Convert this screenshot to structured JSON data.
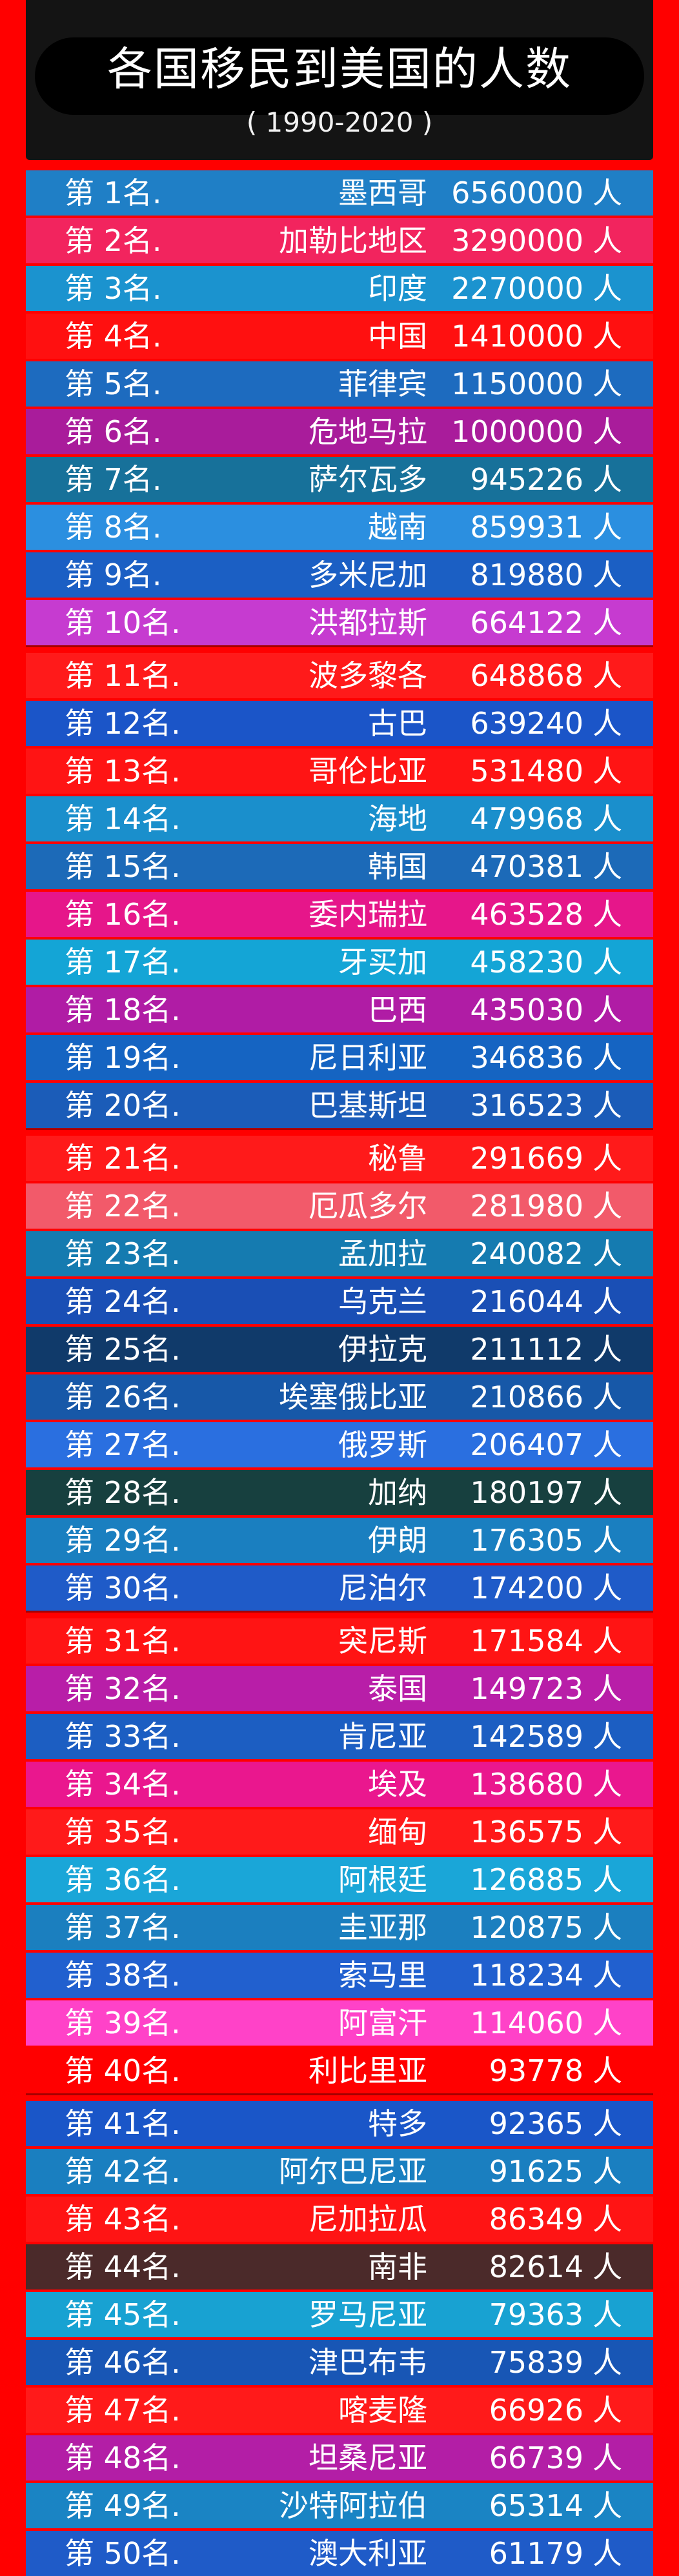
{
  "header": {
    "title": "各国移民到美国的人数",
    "subtitle": "( 1990-2020 )"
  },
  "unit": "人",
  "rows": [
    {
      "rank": "第 1名.",
      "country": "墨西哥",
      "count": "6560000",
      "color": "#1f7fc6"
    },
    {
      "rank": "第 2名.",
      "country": "加勒比地区",
      "count": "3290000",
      "color": "#f2245e"
    },
    {
      "rank": "第 3名.",
      "country": "印度",
      "count": "2270000",
      "color": "#1b93cf"
    },
    {
      "rank": "第 4名.",
      "country": "中国",
      "count": "1410000",
      "color": "#ff1010"
    },
    {
      "rank": "第 5名.",
      "country": "菲律宾",
      "count": "1150000",
      "color": "#1d6bbf"
    },
    {
      "rank": "第 6名.",
      "country": "危地马拉",
      "count": "1000000",
      "color": "#a91c9b"
    },
    {
      "rank": "第 7名.",
      "country": "萨尔瓦多",
      "count": "945226",
      "color": "#17719a"
    },
    {
      "rank": "第 8名.",
      "country": "越南",
      "count": "859931",
      "color": "#2b8fe0"
    },
    {
      "rank": "第 9名.",
      "country": "多米尼加",
      "count": "819880",
      "color": "#1b5fc4"
    },
    {
      "rank": "第 10名.",
      "country": "洪都拉斯",
      "count": "664122",
      "color": "#c63bd0"
    },
    {
      "rank": "第 11名.",
      "country": "波多黎各",
      "count": "648868",
      "color": "#ff1a1a"
    },
    {
      "rank": "第 12名.",
      "country": "古巴",
      "count": "639240",
      "color": "#1b55c8"
    },
    {
      "rank": "第 13名.",
      "country": "哥伦比亚",
      "count": "531480",
      "color": "#ff1414"
    },
    {
      "rank": "第 14名.",
      "country": "海地",
      "count": "479968",
      "color": "#1a8fcc"
    },
    {
      "rank": "第 15名.",
      "country": "韩国",
      "count": "470381",
      "color": "#1c6ab8"
    },
    {
      "rank": "第 16名.",
      "country": "委内瑞拉",
      "count": "463528",
      "color": "#e6168a"
    },
    {
      "rank": "第 17名.",
      "country": "牙买加",
      "count": "458230",
      "color": "#14a5d6"
    },
    {
      "rank": "第 18名.",
      "country": "巴西",
      "count": "435030",
      "color": "#b01ca5"
    },
    {
      "rank": "第 19名.",
      "country": "尼日利亚",
      "count": "346836",
      "color": "#1564c2"
    },
    {
      "rank": "第 20名.",
      "country": "巴基斯坦",
      "count": "316523",
      "color": "#1b5cb8"
    },
    {
      "rank": "第 21名.",
      "country": "秘鲁",
      "count": "291669",
      "color": "#ff1a1a"
    },
    {
      "rank": "第 22名.",
      "country": "厄瓜多尔",
      "count": "281980",
      "color": "#f25a6a"
    },
    {
      "rank": "第 23名.",
      "country": "孟加拉",
      "count": "240082",
      "color": "#157bb0"
    },
    {
      "rank": "第 24名.",
      "country": "乌克兰",
      "count": "216044",
      "color": "#1a4fb5"
    },
    {
      "rank": "第 25名.",
      "country": "伊拉克",
      "count": "211112",
      "color": "#103a6a"
    },
    {
      "rank": "第 26名.",
      "country": "埃塞俄比亚",
      "count": "210866",
      "color": "#1758a8"
    },
    {
      "rank": "第 27名.",
      "country": "俄罗斯",
      "count": "206407",
      "color": "#2a6fe0"
    },
    {
      "rank": "第 28名.",
      "country": "加纳",
      "count": "180197",
      "color": "#17403f"
    },
    {
      "rank": "第 29名.",
      "country": "伊朗",
      "count": "176305",
      "color": "#1a7fc0"
    },
    {
      "rank": "第 30名.",
      "country": "尼泊尔",
      "count": "174200",
      "color": "#1f5bc8"
    },
    {
      "rank": "第 31名.",
      "country": "突尼斯",
      "count": "171584",
      "color": "#ff1414"
    },
    {
      "rank": "第 32名.",
      "country": "泰国",
      "count": "149723",
      "color": "#b81ea8"
    },
    {
      "rank": "第 33名.",
      "country": "肯尼亚",
      "count": "142589",
      "color": "#1c5ec2"
    },
    {
      "rank": "第 34名.",
      "country": "埃及",
      "count": "138680",
      "color": "#ea178e"
    },
    {
      "rank": "第 35名.",
      "country": "缅甸",
      "count": "136575",
      "color": "#ff1a1a"
    },
    {
      "rank": "第 36名.",
      "country": "阿根廷",
      "count": "126885",
      "color": "#1aa6d8"
    },
    {
      "rank": "第 37名.",
      "country": "圭亚那",
      "count": "120875",
      "color": "#1b7fbf"
    },
    {
      "rank": "第 38名.",
      "country": "索马里",
      "count": "118234",
      "color": "#2160cf"
    },
    {
      "rank": "第 39名.",
      "country": "阿富汗",
      "count": "114060",
      "color": "#ff42c8"
    },
    {
      "rank": "第 40名.",
      "country": "利比里亚",
      "count": "93778",
      "color": "#ff0000"
    },
    {
      "rank": "第 41名.",
      "country": "特多",
      "count": "92365",
      "color": "#1a56c8"
    },
    {
      "rank": "第 42名.",
      "country": "阿尔巴尼亚",
      "count": "91625",
      "color": "#1a7fc0"
    },
    {
      "rank": "第 43名.",
      "country": "尼加拉瓜",
      "count": "86349",
      "color": "#ff1414"
    },
    {
      "rank": "第 44名.",
      "country": "南非",
      "count": "82614",
      "color": "#4b2a2a"
    },
    {
      "rank": "第 45名.",
      "country": "罗马尼亚",
      "count": "79363",
      "color": "#18a2d2"
    },
    {
      "rank": "第 46名.",
      "country": "津巴布韦",
      "count": "75839",
      "color": "#1856b5"
    },
    {
      "rank": "第 47名.",
      "country": "喀麦隆",
      "count": "66926",
      "color": "#ff1a1a"
    },
    {
      "rank": "第 48名.",
      "country": "坦桑尼亚",
      "count": "66739",
      "color": "#b31ea6"
    },
    {
      "rank": "第 49名.",
      "country": "沙特阿拉伯",
      "count": "65314",
      "color": "#1a84c4"
    },
    {
      "rank": "第 50名.",
      "country": "澳大利亚",
      "count": "61179",
      "color": "#1f5bc8"
    }
  ]
}
